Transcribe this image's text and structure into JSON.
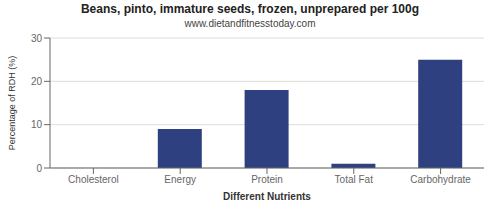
{
  "chart_data": {
    "type": "bar",
    "title": "Beans, pinto, immature seeds, frozen, unprepared per 100g",
    "subtitle": "www.dietandfitnesstoday.com",
    "xlabel": "Different Nutrients",
    "ylabel": "Percentage of RDH (%)",
    "categories": [
      "Cholesterol",
      "Energy",
      "Protein",
      "Total Fat",
      "Carbohydrate"
    ],
    "values": [
      0,
      9,
      18,
      1,
      25
    ],
    "color": "#2E4080",
    "ylim": [
      0,
      30
    ],
    "yticks": [
      0,
      10,
      20,
      30
    ],
    "grid": true
  }
}
